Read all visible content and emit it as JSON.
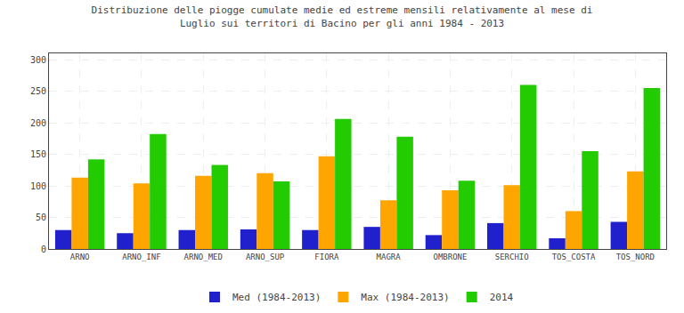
{
  "chart_data": {
    "type": "bar",
    "title": "Distribuzione delle piogge cumulate medie ed estreme mensili relativamente al mese di\nLuglio sui territori di Bacino per gli anni 1984 - 2013",
    "categories": [
      "ARNO",
      "ARNO_INF",
      "ARNO_MED",
      "ARNO_SUP",
      "FIORA",
      "MAGRA",
      "OMBRONE",
      "SERCHIO",
      "TOS_COSTA",
      "TOS_NORD"
    ],
    "series": [
      {
        "name": "Med (1984-2013)",
        "color": "#2020cc",
        "values": [
          30,
          25,
          30,
          31,
          30,
          35,
          22,
          41,
          17,
          43
        ]
      },
      {
        "name": "Max (1984-2013)",
        "color": "#ffa500",
        "values": [
          113,
          104,
          116,
          120,
          147,
          77,
          93,
          101,
          60,
          123
        ]
      },
      {
        "name": "2014",
        "color": "#22cc00",
        "values": [
          142,
          182,
          133,
          107,
          206,
          178,
          108,
          260,
          155,
          255
        ]
      }
    ],
    "ylim": [
      0,
      310
    ],
    "yticks": [
      0,
      50,
      100,
      150,
      200,
      250,
      300
    ],
    "grid": true,
    "legend": "bottom"
  }
}
